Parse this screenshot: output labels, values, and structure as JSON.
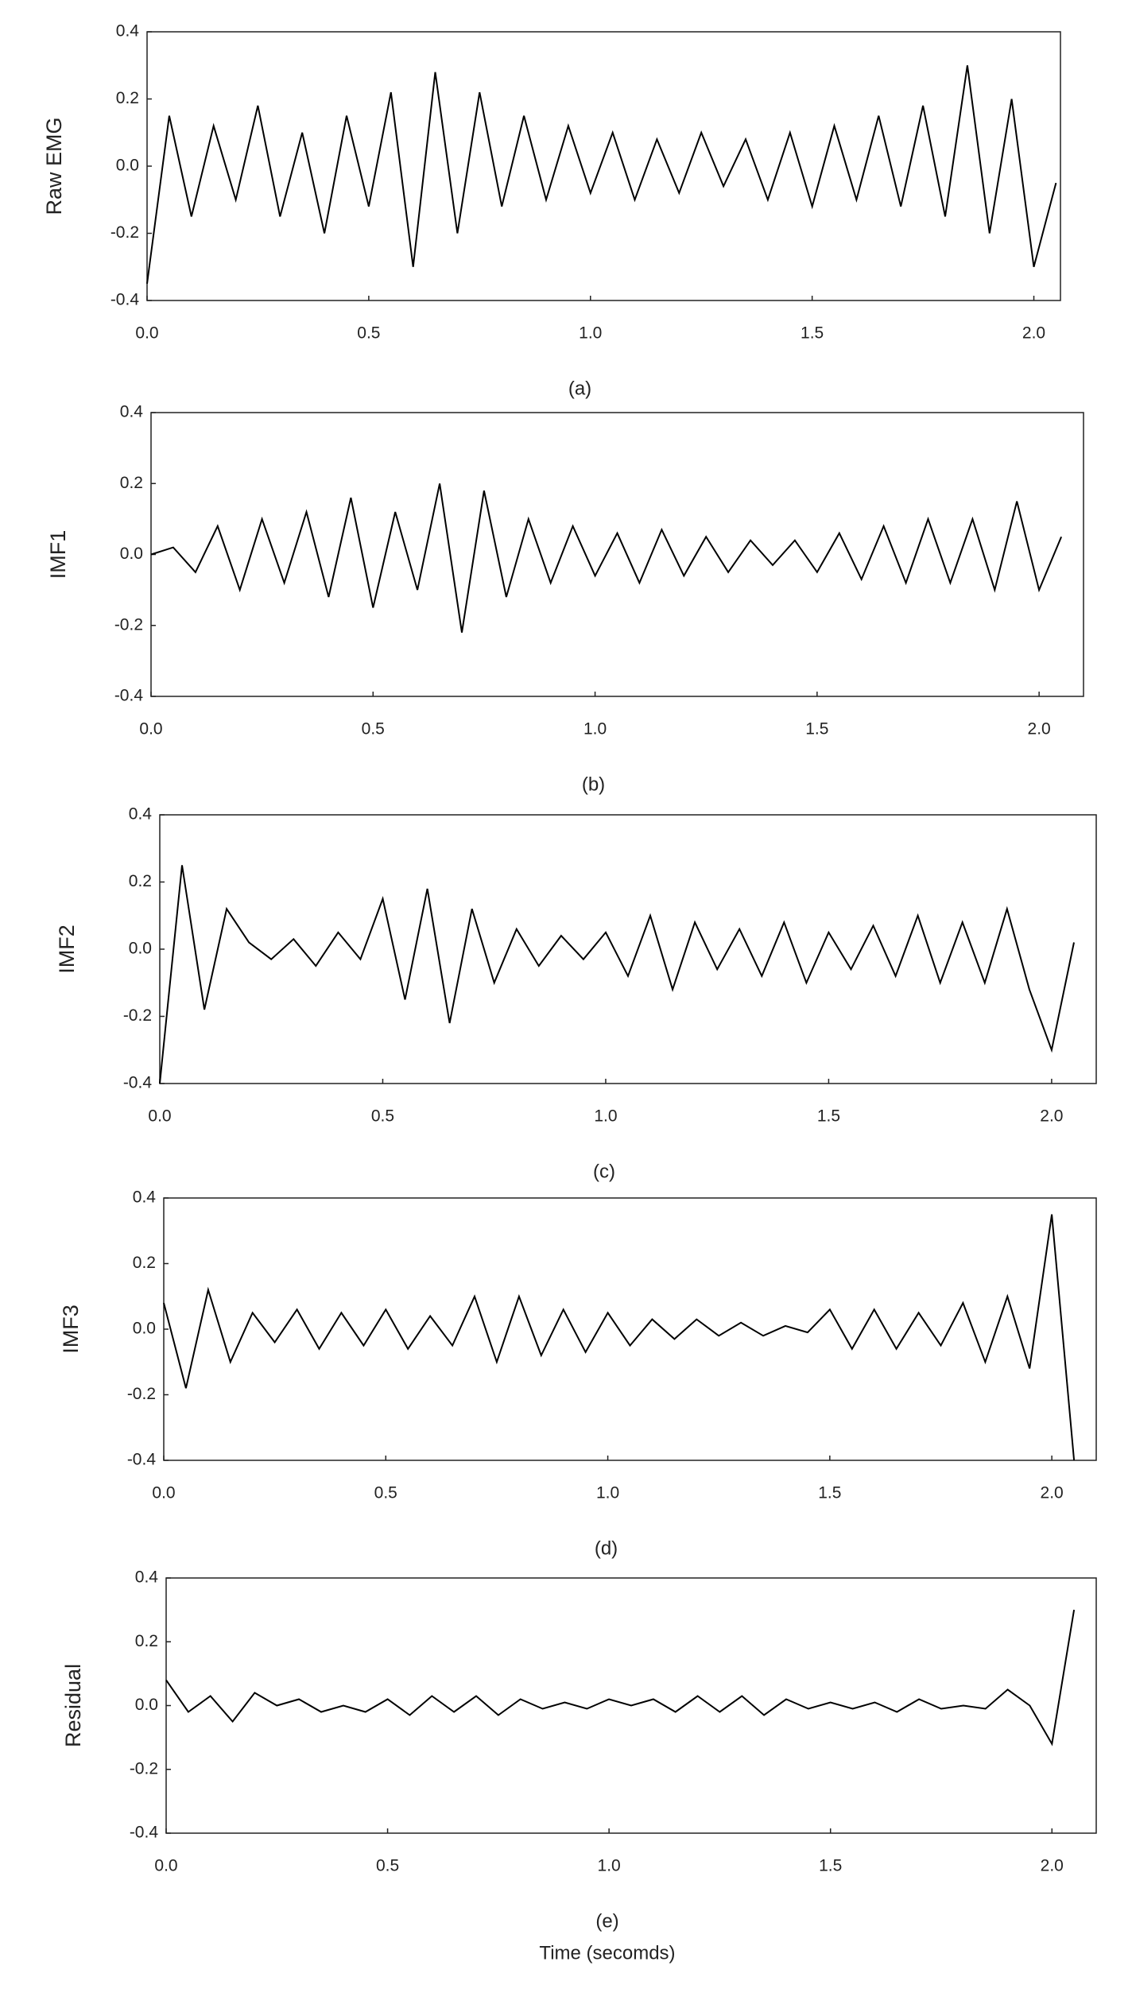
{
  "chart_data": [
    {
      "type": "line",
      "ylabel": "Raw EMG",
      "caption": "(a)",
      "color": "#000000",
      "xlim": [
        0,
        2.06
      ],
      "ylim": [
        -0.4,
        0.4
      ],
      "xticks": [
        {
          "value": 0,
          "label": "0.0"
        },
        0.5,
        {
          "value": 1,
          "label": "1.0"
        },
        1.5,
        {
          "value": 2,
          "label": "2.0"
        }
      ],
      "yticks": [
        -0.4,
        -0.2,
        {
          "value": 0,
          "label": "0.0"
        },
        0.2,
        0.4
      ],
      "x": [
        0,
        0.05,
        0.1,
        0.15,
        0.2,
        0.25,
        0.3,
        0.35,
        0.4,
        0.45,
        0.5,
        0.55,
        0.6,
        0.65,
        0.7,
        0.75,
        0.8,
        0.85,
        0.9,
        0.95,
        1,
        1.05,
        1.1,
        1.15,
        1.2,
        1.25,
        1.3,
        1.35,
        1.4,
        1.45,
        1.5,
        1.55,
        1.6,
        1.65,
        1.7,
        1.75,
        1.8,
        1.85,
        1.9,
        1.95,
        2,
        2.05
      ],
      "values": [
        -0.35,
        0.15,
        -0.15,
        0.12,
        -0.1,
        0.18,
        -0.15,
        0.1,
        -0.2,
        0.15,
        -0.12,
        0.22,
        -0.3,
        0.28,
        -0.2,
        0.22,
        -0.12,
        0.15,
        -0.1,
        0.12,
        -0.08,
        0.1,
        -0.1,
        0.08,
        -0.08,
        0.1,
        -0.06,
        0.08,
        -0.1,
        0.1,
        -0.12,
        0.12,
        -0.1,
        0.15,
        -0.12,
        0.18,
        -0.15,
        0.3,
        -0.2,
        0.2,
        -0.3,
        -0.05
      ]
    },
    {
      "type": "line",
      "ylabel": "IMF1",
      "caption": "(b)",
      "color": "#000000",
      "xlim": [
        0,
        2.1
      ],
      "ylim": [
        -0.4,
        0.4
      ],
      "xticks": [
        {
          "value": 0,
          "label": "0.0"
        },
        0.5,
        {
          "value": 1,
          "label": "1.0"
        },
        1.5,
        {
          "value": 2,
          "label": "2.0"
        }
      ],
      "yticks": [
        -0.4,
        -0.2,
        {
          "value": 0,
          "label": "0.0"
        },
        0.2,
        0.4
      ],
      "x": [
        0,
        0.05,
        0.1,
        0.15,
        0.2,
        0.25,
        0.3,
        0.35,
        0.4,
        0.45,
        0.5,
        0.55,
        0.6,
        0.65,
        0.7,
        0.75,
        0.8,
        0.85,
        0.9,
        0.95,
        1,
        1.05,
        1.1,
        1.15,
        1.2,
        1.25,
        1.3,
        1.35,
        1.4,
        1.45,
        1.5,
        1.55,
        1.6,
        1.65,
        1.7,
        1.75,
        1.8,
        1.85,
        1.9,
        1.95,
        2,
        2.05
      ],
      "values": [
        0,
        0.02,
        -0.05,
        0.08,
        -0.1,
        0.1,
        -0.08,
        0.12,
        -0.12,
        0.16,
        -0.15,
        0.12,
        -0.1,
        0.2,
        -0.22,
        0.18,
        -0.12,
        0.1,
        -0.08,
        0.08,
        -0.06,
        0.06,
        -0.08,
        0.07,
        -0.06,
        0.05,
        -0.05,
        0.04,
        -0.03,
        0.04,
        -0.05,
        0.06,
        -0.07,
        0.08,
        -0.08,
        0.1,
        -0.08,
        0.1,
        -0.1,
        0.15,
        -0.1,
        0.05
      ]
    },
    {
      "type": "line",
      "ylabel": "IMF2",
      "caption": "(c)",
      "color": "#000000",
      "xlim": [
        0,
        2.1
      ],
      "ylim": [
        -0.4,
        0.4
      ],
      "xticks": [
        {
          "value": 0,
          "label": "0.0"
        },
        0.5,
        {
          "value": 1,
          "label": "1.0"
        },
        1.5,
        {
          "value": 2,
          "label": "2.0"
        }
      ],
      "yticks": [
        -0.4,
        -0.2,
        {
          "value": 0,
          "label": "0.0"
        },
        0.2,
        0.4
      ],
      "x": [
        0,
        0.05,
        0.1,
        0.15,
        0.2,
        0.25,
        0.3,
        0.35,
        0.4,
        0.45,
        0.5,
        0.55,
        0.6,
        0.65,
        0.7,
        0.75,
        0.8,
        0.85,
        0.9,
        0.95,
        1,
        1.05,
        1.1,
        1.15,
        1.2,
        1.25,
        1.3,
        1.35,
        1.4,
        1.45,
        1.5,
        1.55,
        1.6,
        1.65,
        1.7,
        1.75,
        1.8,
        1.85,
        1.9,
        1.95,
        2,
        2.05
      ],
      "values": [
        -0.4,
        0.25,
        -0.18,
        0.12,
        0.02,
        -0.03,
        0.03,
        -0.05,
        0.05,
        -0.03,
        0.15,
        -0.15,
        0.18,
        -0.22,
        0.12,
        -0.1,
        0.06,
        -0.05,
        0.04,
        -0.03,
        0.05,
        -0.08,
        0.1,
        -0.12,
        0.08,
        -0.06,
        0.06,
        -0.08,
        0.08,
        -0.1,
        0.05,
        -0.06,
        0.07,
        -0.08,
        0.1,
        -0.1,
        0.08,
        -0.1,
        0.12,
        -0.12,
        -0.3,
        0.02
      ]
    },
    {
      "type": "line",
      "ylabel": "IMF3",
      "caption": "(d)",
      "color": "#000000",
      "xlim": [
        0,
        2.1
      ],
      "ylim": [
        -0.4,
        0.4
      ],
      "xticks": [
        {
          "value": 0,
          "label": "0.0"
        },
        0.5,
        {
          "value": 1,
          "label": "1.0"
        },
        1.5,
        {
          "value": 2,
          "label": "2.0"
        }
      ],
      "yticks": [
        -0.4,
        -0.2,
        {
          "value": 0,
          "label": "0.0"
        },
        0.2,
        0.4
      ],
      "x": [
        0,
        0.05,
        0.1,
        0.15,
        0.2,
        0.25,
        0.3,
        0.35,
        0.4,
        0.45,
        0.5,
        0.55,
        0.6,
        0.65,
        0.7,
        0.75,
        0.8,
        0.85,
        0.9,
        0.95,
        1,
        1.05,
        1.1,
        1.15,
        1.2,
        1.25,
        1.3,
        1.35,
        1.4,
        1.45,
        1.5,
        1.55,
        1.6,
        1.65,
        1.7,
        1.75,
        1.8,
        1.85,
        1.9,
        1.95,
        2,
        2.05
      ],
      "values": [
        0.08,
        -0.18,
        0.12,
        -0.1,
        0.05,
        -0.04,
        0.06,
        -0.06,
        0.05,
        -0.05,
        0.06,
        -0.06,
        0.04,
        -0.05,
        0.1,
        -0.1,
        0.1,
        -0.08,
        0.06,
        -0.07,
        0.05,
        -0.05,
        0.03,
        -0.03,
        0.03,
        -0.02,
        0.02,
        -0.02,
        0.01,
        -0.01,
        0.06,
        -0.06,
        0.06,
        -0.06,
        0.05,
        -0.05,
        0.08,
        -0.1,
        0.1,
        -0.12,
        0.35,
        -0.4
      ]
    },
    {
      "type": "line",
      "ylabel": "Residual",
      "caption": "(e)",
      "xlabel": "Time (secomds)",
      "color": "#000000",
      "xlim": [
        0,
        2.1
      ],
      "ylim": [
        -0.4,
        0.4
      ],
      "xticks": [
        {
          "value": 0,
          "label": "0.0"
        },
        0.5,
        {
          "value": 1,
          "label": "1.0"
        },
        1.5,
        {
          "value": 2,
          "label": "2.0"
        }
      ],
      "yticks": [
        -0.4,
        -0.2,
        {
          "value": 0,
          "label": "0.0"
        },
        0.2,
        0.4
      ],
      "x": [
        0,
        0.05,
        0.1,
        0.15,
        0.2,
        0.25,
        0.3,
        0.35,
        0.4,
        0.45,
        0.5,
        0.55,
        0.6,
        0.65,
        0.7,
        0.75,
        0.8,
        0.85,
        0.9,
        0.95,
        1,
        1.05,
        1.1,
        1.15,
        1.2,
        1.25,
        1.3,
        1.35,
        1.4,
        1.45,
        1.5,
        1.55,
        1.6,
        1.65,
        1.7,
        1.75,
        1.8,
        1.85,
        1.9,
        1.95,
        2,
        2.05
      ],
      "values": [
        0.08,
        -0.02,
        0.03,
        -0.05,
        0.04,
        0,
        0.02,
        -0.02,
        0,
        -0.02,
        0.02,
        -0.03,
        0.03,
        -0.02,
        0.03,
        -0.03,
        0.02,
        -0.01,
        0.01,
        -0.01,
        0.02,
        0,
        0.02,
        -0.02,
        0.03,
        -0.02,
        0.03,
        -0.03,
        0.02,
        -0.01,
        0.01,
        -0.01,
        0.01,
        -0.02,
        0.02,
        -0.01,
        0,
        -0.01,
        0.05,
        0,
        -0.12,
        0.3
      ]
    }
  ]
}
